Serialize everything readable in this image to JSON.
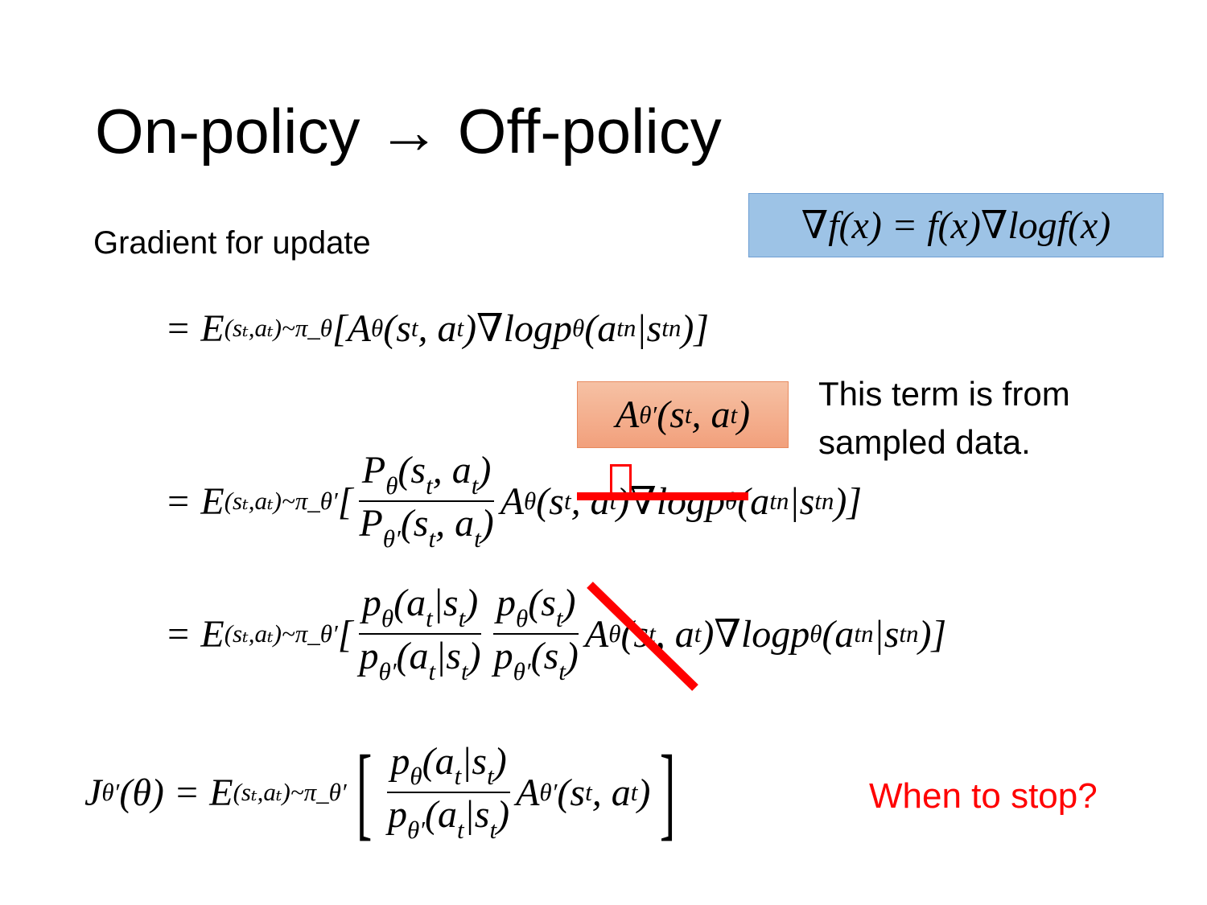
{
  "title": "On-policy → Off-policy",
  "subtitle": "Gradient for update",
  "identity": [
    {
      "t": "∇f(x) = f(x)∇logf(x)"
    }
  ],
  "adv_box": [
    {
      "t": "A"
    },
    {
      "sup": "θ′"
    },
    {
      "t": "(s"
    },
    {
      "sub": "t"
    },
    {
      "t": ", a"
    },
    {
      "sub": "t"
    },
    {
      "t": ")"
    }
  ],
  "note": [
    "This term is from",
    "sampled data."
  ],
  "stop": "When to stop?",
  "colors": {
    "blue_box": "#9dc3e6",
    "orange_box": "#f4b183",
    "red": "#ff0000"
  },
  "eq1": [
    {
      "t": "= E"
    },
    {
      "sub": "(sₜ,aₜ)~π_θ"
    },
    {
      "t": "[A"
    },
    {
      "sup": "θ"
    },
    {
      "t": "(s"
    },
    {
      "sub": "t"
    },
    {
      "t": ", a"
    },
    {
      "sub": "t"
    },
    {
      "t": ")∇logp"
    },
    {
      "sub": "θ"
    },
    {
      "t": "(a"
    },
    {
      "sub": "t"
    },
    {
      "sup": "n"
    },
    {
      "t": "|s"
    },
    {
      "sub": "t"
    },
    {
      "sup": "n"
    },
    {
      "t": ")]"
    }
  ],
  "eq2": [
    {
      "t": "= E"
    },
    {
      "sub": "(sₜ,aₜ)~π_θ′"
    },
    {
      "t": "["
    },
    {
      "frac": {
        "num": [
          {
            "t": "P"
          },
          {
            "sub": "θ"
          },
          {
            "t": "(s"
          },
          {
            "sub": "t"
          },
          {
            "t": ", a"
          },
          {
            "sub": "t"
          },
          {
            "t": ")"
          }
        ],
        "den": [
          {
            "t": "P"
          },
          {
            "sub": "θ′"
          },
          {
            "t": "(s"
          },
          {
            "sub": "t"
          },
          {
            "t": ", a"
          },
          {
            "sub": "t"
          },
          {
            "t": ")"
          }
        ]
      }
    },
    {
      "t": "A"
    },
    {
      "sup": "θ"
    },
    {
      "t": "(s"
    },
    {
      "sub": "t"
    },
    {
      "t": ", a"
    },
    {
      "sub": "t"
    },
    {
      "t": ")∇logp"
    },
    {
      "sub": "θ"
    },
    {
      "t": "(a"
    },
    {
      "sub": "t"
    },
    {
      "sup": "n"
    },
    {
      "t": "|s"
    },
    {
      "sub": "t"
    },
    {
      "sup": "n"
    },
    {
      "t": ")]"
    }
  ],
  "eq3": [
    {
      "t": "= E"
    },
    {
      "sub": "(sₜ,aₜ)~π_θ′"
    },
    {
      "t": "["
    },
    {
      "frac": {
        "num": [
          {
            "t": "p"
          },
          {
            "sub": "θ"
          },
          {
            "t": "(a"
          },
          {
            "sub": "t"
          },
          {
            "t": "|s"
          },
          {
            "sub": "t"
          },
          {
            "t": ")"
          }
        ],
        "den": [
          {
            "t": "p"
          },
          {
            "sub": "θ′"
          },
          {
            "t": "(a"
          },
          {
            "sub": "t"
          },
          {
            "t": "|s"
          },
          {
            "sub": "t"
          },
          {
            "t": ")"
          }
        ]
      }
    },
    {
      "frac": {
        "num": [
          {
            "t": "p"
          },
          {
            "sub": "θ"
          },
          {
            "t": "(s"
          },
          {
            "sub": "t"
          },
          {
            "t": ")"
          }
        ],
        "den": [
          {
            "t": "p"
          },
          {
            "sub": "θ′"
          },
          {
            "t": "(s"
          },
          {
            "sub": "t"
          },
          {
            "t": ")"
          }
        ]
      }
    },
    {
      "t": "A"
    },
    {
      "sup": "θ"
    },
    {
      "t": "(s"
    },
    {
      "sub": "t"
    },
    {
      "t": ", a"
    },
    {
      "sub": "t"
    },
    {
      "t": ")∇logp"
    },
    {
      "sub": "θ"
    },
    {
      "t": "(a"
    },
    {
      "sub": "t"
    },
    {
      "sup": "n"
    },
    {
      "t": "|s"
    },
    {
      "sub": "t"
    },
    {
      "sup": "n"
    },
    {
      "t": ")]"
    }
  ],
  "eq4": [
    {
      "t": "J"
    },
    {
      "sup": "θ′"
    },
    {
      "t": "(θ) =  E"
    },
    {
      "sub": "(sₜ,aₜ)~π_θ′"
    },
    {
      "br": "["
    },
    {
      "frac": {
        "num": [
          {
            "t": "p"
          },
          {
            "sub": "θ"
          },
          {
            "t": "(a"
          },
          {
            "sub": "t"
          },
          {
            "t": "|s"
          },
          {
            "sub": "t"
          },
          {
            "t": ")"
          }
        ],
        "den": [
          {
            "t": "p"
          },
          {
            "sub": "θ′"
          },
          {
            "t": "(a"
          },
          {
            "sub": "t"
          },
          {
            "t": "|s"
          },
          {
            "sub": "t"
          },
          {
            "t": ")"
          }
        ]
      }
    },
    {
      "t": "A"
    },
    {
      "sup": "θ′"
    },
    {
      "t": "(s"
    },
    {
      "sub": "t"
    },
    {
      "t": ", a"
    },
    {
      "sub": "t"
    },
    {
      "t": ")"
    },
    {
      "br": "]"
    }
  ]
}
